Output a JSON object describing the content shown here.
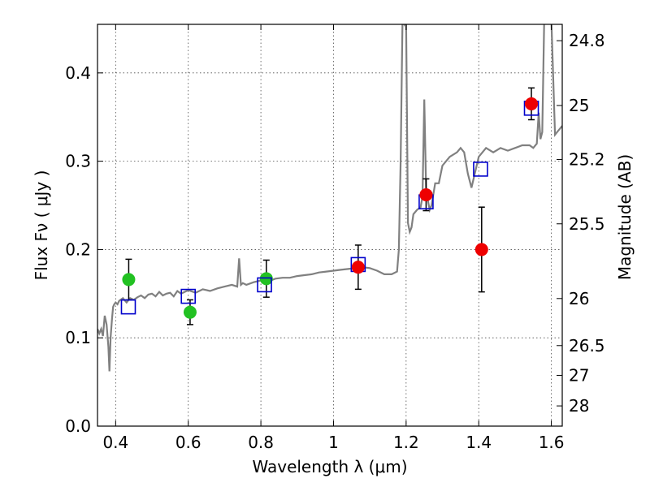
{
  "chart_data": {
    "type": "scatter",
    "title": "",
    "xlabel": "Wavelength  λ (μm)",
    "ylabel": "Flux  Fν  ( μJy )",
    "ylabel_right": "Magnitude (AB)",
    "xlim": [
      0.35,
      1.63
    ],
    "ylim": [
      0.0,
      0.455
    ],
    "x_ticks": [
      0.4,
      0.6,
      0.8,
      1.0,
      1.2,
      1.4,
      1.6
    ],
    "x_tick_labels": [
      "0.4",
      "0.6",
      "0.8",
      "1",
      "1.2",
      "1.4",
      "1.6"
    ],
    "y_ticks": [
      0.0,
      0.1,
      0.2,
      0.3,
      0.4
    ],
    "y_tick_labels": [
      "0.0",
      "0.1",
      "0.2",
      "0.3",
      "0.4"
    ],
    "right_ticks": [
      {
        "flux": 0.4365,
        "label": "24.8"
      },
      {
        "flux": 0.3631,
        "label": "25"
      },
      {
        "flux": 0.302,
        "label": "25.2"
      },
      {
        "flux": 0.2291,
        "label": "25.5"
      },
      {
        "flux": 0.1445,
        "label": "26"
      },
      {
        "flux": 0.0912,
        "label": "26.5"
      },
      {
        "flux": 0.0575,
        "label": "27"
      },
      {
        "flux": 0.0229,
        "label": "28"
      }
    ],
    "grid": true,
    "colors": {
      "model": "#808080",
      "green": "#22c122",
      "red": "#ee0000",
      "square": "#0000cc",
      "errorbar": "#000000"
    },
    "series": [
      {
        "kind": "model-spectrum",
        "x": [
          0.35,
          0.355,
          0.36,
          0.365,
          0.37,
          0.375,
          0.38,
          0.383,
          0.386,
          0.39,
          0.393,
          0.396,
          0.4,
          0.405,
          0.41,
          0.42,
          0.43,
          0.44,
          0.45,
          0.46,
          0.47,
          0.48,
          0.49,
          0.5,
          0.51,
          0.52,
          0.53,
          0.54,
          0.55,
          0.56,
          0.57,
          0.58,
          0.59,
          0.6,
          0.62,
          0.64,
          0.66,
          0.68,
          0.7,
          0.72,
          0.735,
          0.74,
          0.745,
          0.75,
          0.76,
          0.78,
          0.8,
          0.82,
          0.84,
          0.86,
          0.88,
          0.9,
          0.92,
          0.94,
          0.96,
          0.98,
          1.0,
          1.02,
          1.04,
          1.06,
          1.08,
          1.1,
          1.12,
          1.14,
          1.16,
          1.175,
          1.18,
          1.185,
          1.19,
          1.195,
          1.2,
          1.205,
          1.21,
          1.215,
          1.22,
          1.23,
          1.24,
          1.245,
          1.25,
          1.255,
          1.26,
          1.265,
          1.27,
          1.28,
          1.29,
          1.3,
          1.32,
          1.34,
          1.35,
          1.36,
          1.37,
          1.38,
          1.4,
          1.42,
          1.44,
          1.46,
          1.48,
          1.5,
          1.52,
          1.54,
          1.55,
          1.56,
          1.565,
          1.57,
          1.575,
          1.58,
          1.59,
          1.6,
          1.61,
          1.62,
          1.63
        ],
        "y": [
          0.11,
          0.105,
          0.11,
          0.102,
          0.125,
          0.115,
          0.09,
          0.062,
          0.1,
          0.122,
          0.135,
          0.138,
          0.14,
          0.138,
          0.142,
          0.145,
          0.14,
          0.145,
          0.143,
          0.146,
          0.148,
          0.145,
          0.149,
          0.15,
          0.147,
          0.152,
          0.148,
          0.15,
          0.151,
          0.147,
          0.153,
          0.15,
          0.152,
          0.154,
          0.151,
          0.155,
          0.153,
          0.156,
          0.158,
          0.16,
          0.158,
          0.19,
          0.16,
          0.162,
          0.16,
          0.163,
          0.165,
          0.164,
          0.167,
          0.168,
          0.168,
          0.17,
          0.171,
          0.172,
          0.174,
          0.175,
          0.176,
          0.177,
          0.178,
          0.179,
          0.18,
          0.179,
          0.176,
          0.172,
          0.172,
          0.175,
          0.2,
          0.3,
          0.46,
          0.455,
          0.46,
          0.23,
          0.22,
          0.225,
          0.24,
          0.245,
          0.248,
          0.26,
          0.37,
          0.27,
          0.255,
          0.245,
          0.25,
          0.275,
          0.275,
          0.295,
          0.305,
          0.31,
          0.315,
          0.31,
          0.286,
          0.27,
          0.305,
          0.315,
          0.31,
          0.315,
          0.312,
          0.315,
          0.318,
          0.318,
          0.315,
          0.32,
          0.355,
          0.325,
          0.333,
          0.455,
          0.46,
          0.46,
          0.33,
          0.335,
          0.34
        ]
      },
      {
        "kind": "observed-green",
        "points": [
          {
            "x": 0.436,
            "y": 0.166,
            "err": 0.023
          },
          {
            "x": 0.605,
            "y": 0.129,
            "err": 0.014
          },
          {
            "x": 0.815,
            "y": 0.167,
            "err": 0.021
          }
        ]
      },
      {
        "kind": "observed-red",
        "points": [
          {
            "x": 1.068,
            "y": 0.18,
            "err": 0.025
          },
          {
            "x": 1.255,
            "y": 0.262,
            "err": 0.018
          },
          {
            "x": 1.408,
            "y": 0.2,
            "err": 0.048
          },
          {
            "x": 1.545,
            "y": 0.365,
            "err": 0.018
          }
        ]
      },
      {
        "kind": "model-bandpass",
        "points": [
          {
            "x": 0.435,
            "y": 0.135
          },
          {
            "x": 0.6,
            "y": 0.147
          },
          {
            "x": 0.81,
            "y": 0.16
          },
          {
            "x": 1.068,
            "y": 0.183
          },
          {
            "x": 1.255,
            "y": 0.254
          },
          {
            "x": 1.405,
            "y": 0.291
          },
          {
            "x": 1.545,
            "y": 0.36
          }
        ]
      }
    ]
  }
}
